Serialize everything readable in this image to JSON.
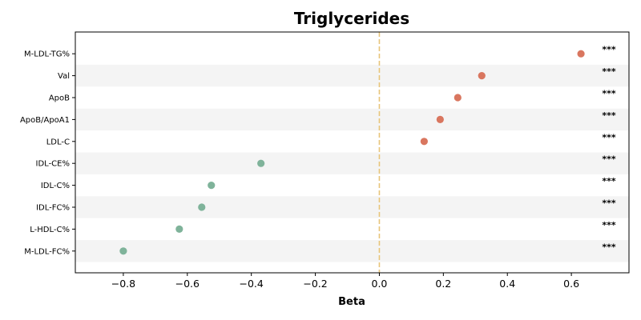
{
  "chart_data": {
    "type": "scatter",
    "title": "Triglycerides",
    "xlabel": "Beta",
    "ylabel": "",
    "xlim": [
      -0.95,
      0.78
    ],
    "x_ticks": [
      -0.8,
      -0.6,
      -0.4,
      -0.2,
      0.0,
      0.2,
      0.4,
      0.6
    ],
    "x_tick_labels": [
      "−0.8",
      "−0.6",
      "−0.4",
      "−0.2",
      "0.0",
      "0.2",
      "0.4",
      "0.6"
    ],
    "reference_line": {
      "x": 0.0,
      "style": "dashed",
      "color": "#e8c57a"
    },
    "grid": false,
    "alternating_row_shading": true,
    "colors": {
      "positive": "#d9765f",
      "negative": "#7fb39a",
      "row_shade": "#f4f4f4",
      "axis": "#000000"
    },
    "points": [
      {
        "label": "M-LDL-TG%",
        "beta": 0.63,
        "sig": "***"
      },
      {
        "label": "Val",
        "beta": 0.32,
        "sig": "***"
      },
      {
        "label": "ApoB",
        "beta": 0.245,
        "sig": "***"
      },
      {
        "label": "ApoB/ApoA1",
        "beta": 0.19,
        "sig": "***"
      },
      {
        "label": "LDL-C",
        "beta": 0.14,
        "sig": "***"
      },
      {
        "label": "IDL-CE%",
        "beta": -0.37,
        "sig": "***"
      },
      {
        "label": "IDL-C%",
        "beta": -0.525,
        "sig": "***"
      },
      {
        "label": "IDL-FC%",
        "beta": -0.555,
        "sig": "***"
      },
      {
        "label": "L-HDL-C%",
        "beta": -0.625,
        "sig": "***"
      },
      {
        "label": "M-LDL-FC%",
        "beta": -0.8,
        "sig": "***"
      }
    ]
  }
}
